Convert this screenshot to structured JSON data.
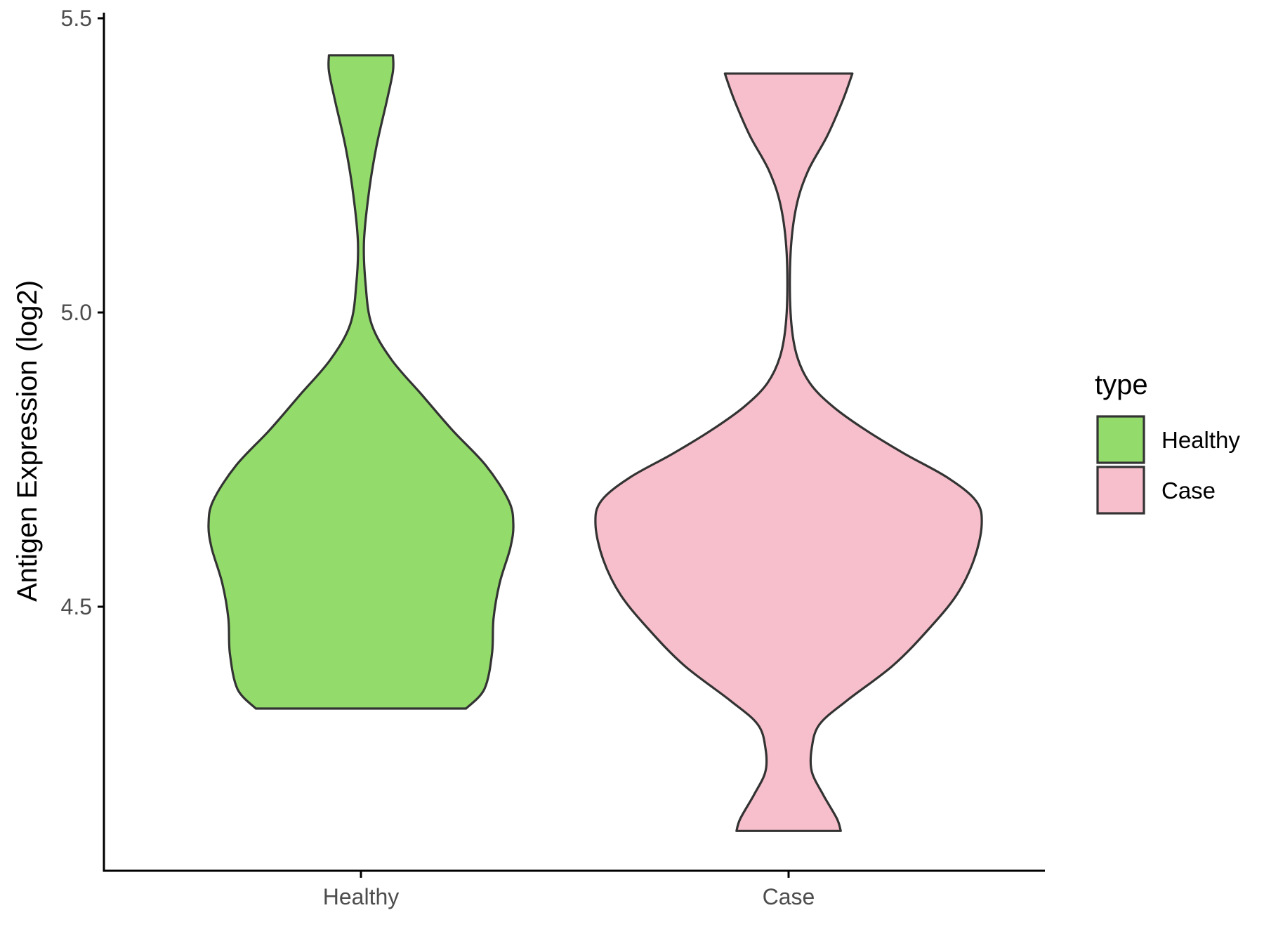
{
  "chart_data": {
    "type": "violin",
    "ylabel": "Antigen Expression (log2)",
    "xlabel": "",
    "ylim": [
      4.06,
      5.5
    ],
    "yticks": [
      4.5,
      5.0,
      5.5
    ],
    "ytick_labels": [
      "4.5",
      "5.0",
      "5.5"
    ],
    "categories": [
      "Healthy",
      "Case"
    ],
    "grid": false,
    "legend": {
      "title": "type",
      "position": "right",
      "entries": [
        {
          "label": "Healthy",
          "color": "#93dc6b"
        },
        {
          "label": "Case",
          "color": "#f7bfcb"
        }
      ]
    },
    "series": [
      {
        "name": "Healthy",
        "color": "#93dc6b",
        "y_min": 4.327,
        "y_max": 5.437,
        "density_profile": [
          {
            "y": 4.327,
            "w": 0.69
          },
          {
            "y": 4.36,
            "w": 0.81
          },
          {
            "y": 4.42,
            "w": 0.86
          },
          {
            "y": 4.48,
            "w": 0.87
          },
          {
            "y": 4.54,
            "w": 0.91
          },
          {
            "y": 4.6,
            "w": 0.98
          },
          {
            "y": 4.64,
            "w": 1.0
          },
          {
            "y": 4.68,
            "w": 0.97
          },
          {
            "y": 4.74,
            "w": 0.82
          },
          {
            "y": 4.8,
            "w": 0.6
          },
          {
            "y": 4.86,
            "w": 0.4
          },
          {
            "y": 4.92,
            "w": 0.2
          },
          {
            "y": 4.98,
            "w": 0.07
          },
          {
            "y": 5.05,
            "w": 0.03
          },
          {
            "y": 5.12,
            "w": 0.02
          },
          {
            "y": 5.2,
            "w": 0.05
          },
          {
            "y": 5.28,
            "w": 0.1
          },
          {
            "y": 5.36,
            "w": 0.17
          },
          {
            "y": 5.41,
            "w": 0.21
          },
          {
            "y": 5.437,
            "w": 0.21
          }
        ]
      },
      {
        "name": "Case",
        "color": "#f7bfcb",
        "y_min": 4.119,
        "y_max": 5.406,
        "density_profile": [
          {
            "y": 4.119,
            "w": 0.27
          },
          {
            "y": 4.14,
            "w": 0.25
          },
          {
            "y": 4.18,
            "w": 0.18
          },
          {
            "y": 4.22,
            "w": 0.12
          },
          {
            "y": 4.26,
            "w": 0.12
          },
          {
            "y": 4.3,
            "w": 0.16
          },
          {
            "y": 4.34,
            "w": 0.3
          },
          {
            "y": 4.4,
            "w": 0.54
          },
          {
            "y": 4.46,
            "w": 0.72
          },
          {
            "y": 4.52,
            "w": 0.87
          },
          {
            "y": 4.58,
            "w": 0.96
          },
          {
            "y": 4.64,
            "w": 1.0
          },
          {
            "y": 4.68,
            "w": 0.97
          },
          {
            "y": 4.72,
            "w": 0.82
          },
          {
            "y": 4.76,
            "w": 0.6
          },
          {
            "y": 4.8,
            "w": 0.4
          },
          {
            "y": 4.84,
            "w": 0.23
          },
          {
            "y": 4.88,
            "w": 0.11
          },
          {
            "y": 4.93,
            "w": 0.04
          },
          {
            "y": 5.0,
            "w": 0.01
          },
          {
            "y": 5.1,
            "w": 0.01
          },
          {
            "y": 5.18,
            "w": 0.04
          },
          {
            "y": 5.24,
            "w": 0.1
          },
          {
            "y": 5.3,
            "w": 0.2
          },
          {
            "y": 5.36,
            "w": 0.28
          },
          {
            "y": 5.406,
            "w": 0.33
          }
        ]
      }
    ]
  }
}
